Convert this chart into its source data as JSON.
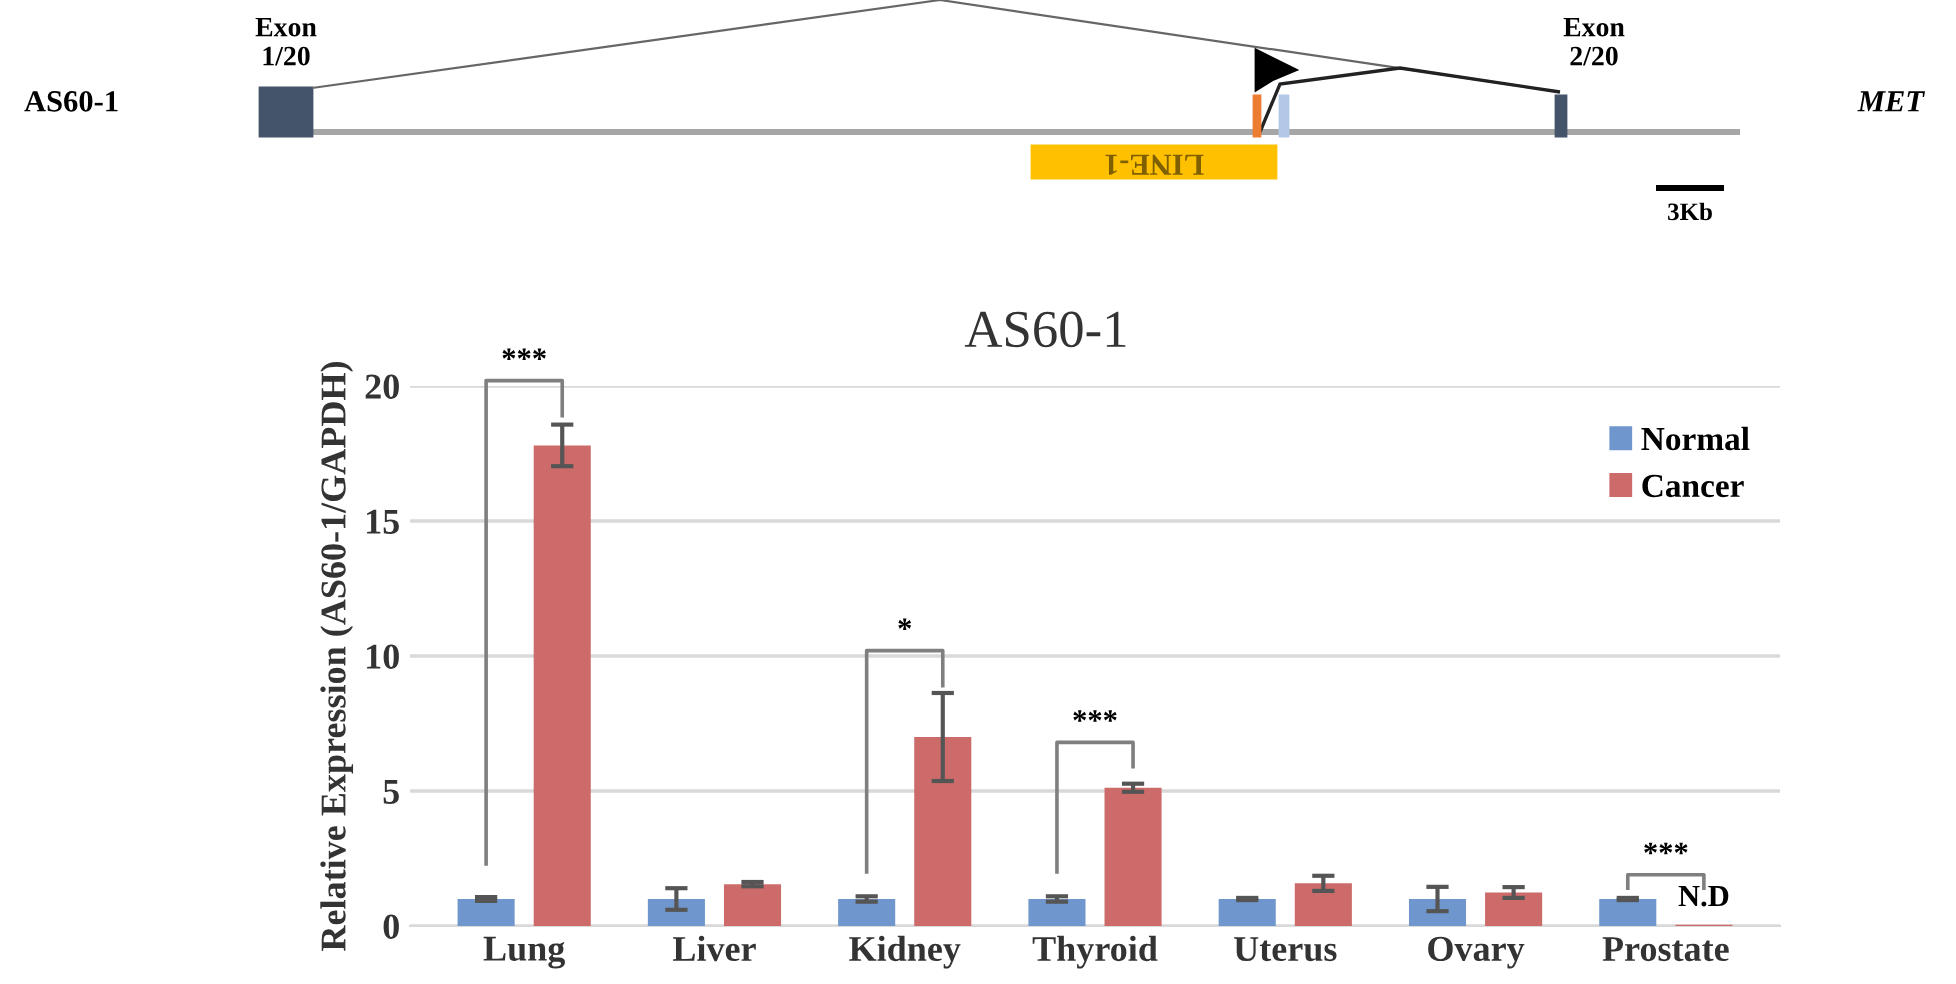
{
  "chart_data": {
    "type": "bar",
    "title": "AS60-1",
    "ylabel": "Relative Expression (AS60-1/GAPDH)",
    "categories": [
      "Lung",
      "Liver",
      "Kidney",
      "Thyroid",
      "Uterus",
      "Ovary",
      "Prostate"
    ],
    "series": [
      {
        "name": "Normal",
        "color": "#6f97cd",
        "values": [
          1,
          1,
          1,
          1,
          1,
          1,
          1
        ],
        "errors": [
          0.07,
          0.4,
          0.1,
          0.1,
          0.04,
          0.45,
          0.04
        ]
      },
      {
        "name": "Cancer",
        "color": "#cc6b6a",
        "values": [
          17.8,
          1.55,
          7.0,
          5.12,
          1.58,
          1.24,
          0.05
        ],
        "errors": [
          0.77,
          0.08,
          1.63,
          0.15,
          0.28,
          0.2,
          null
        ]
      }
    ],
    "ylim": [
      0,
      20
    ],
    "yticks": [
      0,
      5,
      10,
      15,
      20
    ],
    "grid": "y",
    "legend": "top right",
    "annotations": [
      "***",
      "*",
      "***",
      "***",
      "N.D",
      "Exon\n1/20",
      "Exon\n2/20",
      "AS60-1",
      "MET",
      "LINE-1",
      "3Kb"
    ]
  }
}
